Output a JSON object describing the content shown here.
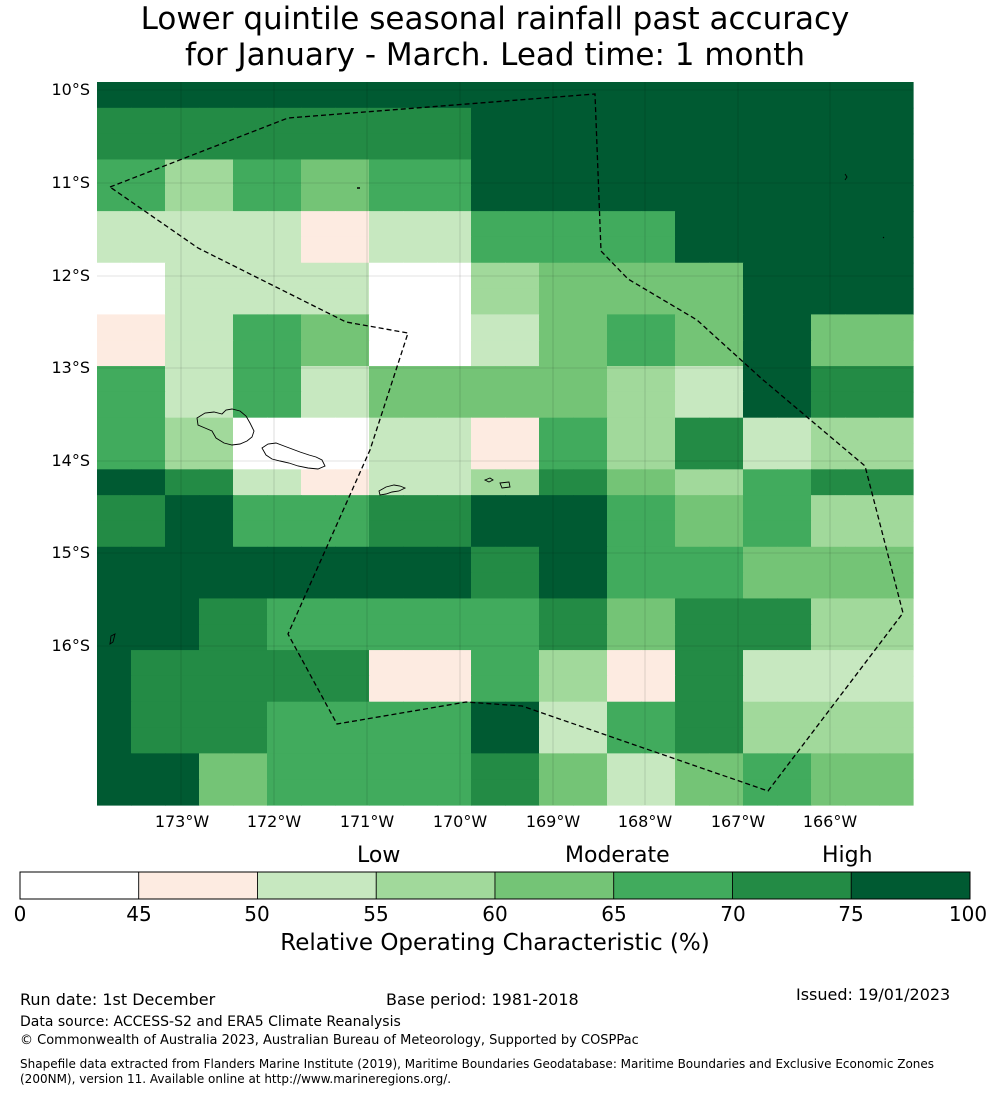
{
  "title_line1": "Lower quintile seasonal rainfall past accuracy",
  "title_line2": "for January - March. Lead time: 1 month",
  "lat_labels": [
    "10°S",
    "11°S",
    "12°S",
    "13°S",
    "14°S",
    "15°S",
    "16°S"
  ],
  "lon_labels": [
    "173°W",
    "172°W",
    "171°W",
    "170°W",
    "169°W",
    "168°W",
    "167°W",
    "166°W"
  ],
  "legend": {
    "categories": [
      "Low",
      "Moderate",
      "High"
    ],
    "ticks": [
      "0",
      "45",
      "50",
      "55",
      "60",
      "65",
      "70",
      "75",
      "100"
    ],
    "colors": [
      "#ffffff",
      "#fdebe1",
      "#c7e8c0",
      "#a1d99b",
      "#74c476",
      "#41ab5d",
      "#238b45",
      "#005a32"
    ],
    "label": "Relative Operating Characteristic (%)"
  },
  "grid_classes": [
    [
      7,
      7,
      7,
      7,
      7,
      7,
      7,
      7,
      7,
      7,
      7,
      7,
      7,
      7,
      7,
      7,
      7,
      7,
      7,
      7,
      7,
      7,
      7,
      7
    ],
    [
      6,
      6,
      6,
      6,
      6,
      6,
      6,
      6,
      6,
      6,
      6,
      7,
      7,
      7,
      7,
      7,
      7,
      7,
      7,
      7,
      7,
      7,
      7,
      7
    ],
    [
      6,
      6,
      6,
      6,
      6,
      6,
      6,
      6,
      6,
      6,
      6,
      7,
      7,
      7,
      7,
      7,
      7,
      7,
      7,
      7,
      7,
      7,
      7,
      7
    ],
    [
      5,
      5,
      3,
      3,
      5,
      5,
      4,
      4,
      5,
      5,
      5,
      7,
      7,
      7,
      7,
      7,
      7,
      7,
      7,
      7,
      7,
      7,
      7,
      7
    ],
    [
      5,
      5,
      3,
      3,
      5,
      5,
      4,
      4,
      5,
      5,
      5,
      7,
      7,
      7,
      7,
      7,
      7,
      7,
      7,
      7,
      7,
      7,
      7,
      7
    ],
    [
      2,
      2,
      2,
      2,
      2,
      2,
      1,
      1,
      2,
      2,
      2,
      5,
      5,
      5,
      5,
      5,
      5,
      7,
      7,
      7,
      7,
      7,
      7,
      7
    ],
    [
      2,
      2,
      2,
      2,
      2,
      2,
      1,
      1,
      2,
      2,
      2,
      5,
      5,
      5,
      5,
      5,
      5,
      7,
      7,
      7,
      7,
      7,
      7,
      7
    ],
    [
      0,
      0,
      2,
      2,
      2,
      2,
      2,
      2,
      0,
      0,
      0,
      3,
      3,
      4,
      4,
      4,
      4,
      4,
      4,
      7,
      7,
      7,
      7,
      7
    ],
    [
      0,
      0,
      2,
      2,
      2,
      2,
      2,
      2,
      0,
      0,
      0,
      3,
      3,
      4,
      4,
      4,
      4,
      4,
      4,
      7,
      7,
      7,
      7,
      7
    ],
    [
      1,
      1,
      2,
      2,
      5,
      5,
      4,
      4,
      0,
      0,
      0,
      2,
      2,
      4,
      4,
      5,
      5,
      4,
      4,
      7,
      7,
      4,
      4,
      4
    ],
    [
      1,
      1,
      2,
      2,
      5,
      5,
      4,
      4,
      0,
      0,
      0,
      2,
      2,
      4,
      4,
      5,
      5,
      4,
      4,
      7,
      7,
      4,
      4,
      4
    ],
    [
      5,
      5,
      2,
      2,
      5,
      5,
      2,
      2,
      4,
      4,
      4,
      4,
      4,
      4,
      4,
      3,
      3,
      2,
      2,
      7,
      7,
      6,
      6,
      6
    ],
    [
      5,
      5,
      2,
      2,
      5,
      5,
      2,
      2,
      4,
      4,
      4,
      4,
      4,
      4,
      4,
      3,
      3,
      2,
      2,
      7,
      7,
      6,
      6,
      6
    ],
    [
      5,
      5,
      3,
      3,
      0,
      0,
      0,
      0,
      2,
      2,
      2,
      1,
      1,
      5,
      5,
      3,
      3,
      6,
      6,
      2,
      2,
      3,
      3,
      3
    ],
    [
      5,
      5,
      3,
      3,
      0,
      0,
      0,
      0,
      2,
      2,
      2,
      1,
      1,
      5,
      5,
      3,
      3,
      6,
      6,
      2,
      2,
      3,
      3,
      3
    ],
    [
      7,
      7,
      6,
      6,
      2,
      2,
      1,
      1,
      2,
      2,
      2,
      3,
      3,
      6,
      6,
      4,
      4,
      3,
      3,
      5,
      5,
      6,
      6,
      6
    ],
    [
      6,
      6,
      7,
      7,
      5,
      5,
      5,
      5,
      6,
      6,
      6,
      7,
      7,
      7,
      7,
      5,
      5,
      4,
      4,
      5,
      5,
      3,
      3,
      3
    ],
    [
      6,
      6,
      7,
      7,
      5,
      5,
      5,
      5,
      6,
      6,
      6,
      7,
      7,
      7,
      7,
      5,
      5,
      4,
      4,
      5,
      5,
      3,
      3,
      3
    ],
    [
      7,
      7,
      7,
      7,
      7,
      7,
      7,
      7,
      7,
      7,
      7,
      6,
      6,
      7,
      7,
      5,
      5,
      5,
      5,
      4,
      4,
      4,
      4,
      4
    ],
    [
      7,
      7,
      7,
      7,
      7,
      7,
      7,
      7,
      7,
      7,
      7,
      6,
      6,
      7,
      7,
      5,
      5,
      5,
      5,
      4,
      4,
      4,
      4,
      4
    ],
    [
      7,
      7,
      7,
      6,
      6,
      5,
      5,
      5,
      5,
      5,
      5,
      5,
      5,
      6,
      6,
      4,
      4,
      6,
      6,
      6,
      6,
      3,
      3,
      3
    ],
    [
      7,
      7,
      7,
      6,
      6,
      5,
      5,
      5,
      5,
      5,
      5,
      5,
      5,
      6,
      6,
      4,
      4,
      6,
      6,
      6,
      6,
      3,
      3,
      3
    ],
    [
      7,
      6,
      6,
      6,
      6,
      6,
      6,
      6,
      1,
      1,
      1,
      5,
      5,
      3,
      3,
      1,
      1,
      6,
      6,
      2,
      2,
      2,
      2,
      2
    ],
    [
      7,
      6,
      6,
      6,
      6,
      6,
      6,
      6,
      1,
      1,
      1,
      5,
      5,
      3,
      3,
      1,
      1,
      6,
      6,
      2,
      2,
      2,
      2,
      2
    ],
    [
      7,
      6,
      6,
      6,
      6,
      5,
      5,
      5,
      5,
      5,
      5,
      7,
      7,
      2,
      2,
      5,
      5,
      6,
      6,
      3,
      3,
      3,
      3,
      3
    ],
    [
      7,
      6,
      6,
      6,
      6,
      5,
      5,
      5,
      5,
      5,
      5,
      7,
      7,
      2,
      2,
      5,
      5,
      6,
      6,
      3,
      3,
      3,
      3,
      3
    ],
    [
      7,
      7,
      7,
      4,
      4,
      5,
      5,
      5,
      5,
      5,
      5,
      6,
      6,
      4,
      4,
      2,
      2,
      4,
      4,
      5,
      5,
      4,
      4,
      4
    ],
    [
      7,
      7,
      7,
      4,
      4,
      5,
      5,
      5,
      5,
      5,
      5,
      6,
      6,
      4,
      4,
      2,
      2,
      4,
      4,
      5,
      5,
      4,
      4,
      4
    ]
  ],
  "footer": {
    "run_date": "Run date: 1st December",
    "base_period": "Base period: 1981-2018",
    "issued": "Issued: 19/01/2023",
    "data_source": "Data source: ACCESS-S2 and ERA5 Climate Reanalysis",
    "copyright": "© Commonwealth of Australia 2023, Australian Bureau of Meteorology, Supported by COSPPac",
    "shapefile_line1": "Shapefile data extracted from Flanders Marine Institute (2019), Maritime Boundaries Geodatabase: Maritime Boundaries and Exclusive Economic Zones",
    "shapefile_line2": "(200NM), version 11. Available online at http://www.marineregions.org/."
  }
}
